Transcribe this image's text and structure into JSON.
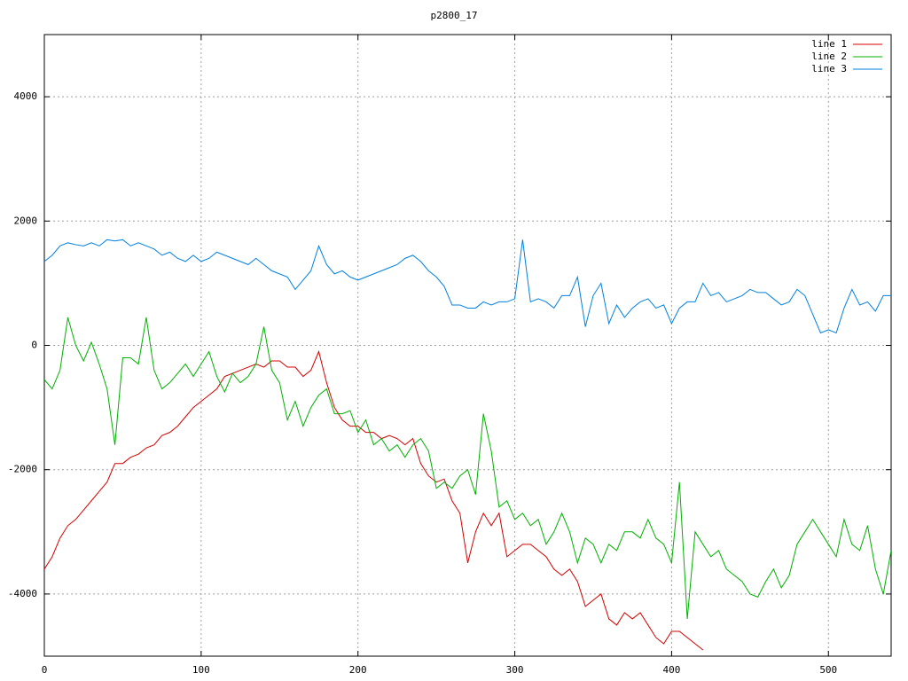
{
  "chart_data": {
    "type": "line",
    "title": "p2800_17",
    "x": [
      0,
      5,
      10,
      15,
      20,
      25,
      30,
      35,
      40,
      45,
      50,
      55,
      60,
      65,
      70,
      75,
      80,
      85,
      90,
      95,
      100,
      105,
      110,
      115,
      120,
      125,
      130,
      135,
      140,
      145,
      150,
      155,
      160,
      165,
      170,
      175,
      180,
      185,
      190,
      195,
      200,
      205,
      210,
      215,
      220,
      225,
      230,
      235,
      240,
      245,
      250,
      255,
      260,
      265,
      270,
      275,
      280,
      285,
      290,
      295,
      300,
      305,
      310,
      315,
      320,
      325,
      330,
      335,
      340,
      345,
      350,
      355,
      360,
      365,
      370,
      375,
      380,
      385,
      390,
      395,
      400,
      405,
      410,
      415,
      420,
      425,
      430,
      435,
      440,
      445,
      450,
      455,
      460,
      465,
      470,
      475,
      480,
      485,
      490,
      495,
      500,
      505,
      510,
      515,
      520,
      525,
      530,
      535,
      540
    ],
    "series": [
      {
        "name": "line 1",
        "color": "#d40000",
        "values": [
          -3600,
          -3400,
          -3100,
          -2900,
          -2800,
          -2650,
          -2500,
          -2350,
          -2200,
          -1900,
          -1900,
          -1800,
          -1750,
          -1650,
          -1600,
          -1450,
          -1400,
          -1300,
          -1150,
          -1000,
          -900,
          -800,
          -700,
          -500,
          -450,
          -400,
          -350,
          -300,
          -350,
          -250,
          -250,
          -350,
          -350,
          -500,
          -400,
          -100,
          -600,
          -1000,
          -1200,
          -1300,
          -1300,
          -1400,
          -1400,
          -1500,
          -1450,
          -1500,
          -1600,
          -1500,
          -1900,
          -2100,
          -2200,
          -2150,
          -2500,
          -2700,
          -3500,
          -3000,
          -2700,
          -2900,
          -2700,
          -3400,
          -3300,
          -3200,
          -3200,
          -3300,
          -3400,
          -3600,
          -3700,
          -3600,
          -3800,
          -4200,
          -4100,
          -4000,
          -4400,
          -4500,
          -4300,
          -4400,
          -4300,
          -4500,
          -4700,
          -4800,
          -4600,
          -4600,
          -4700,
          -4800,
          -4900,
          null,
          null,
          null,
          null,
          null,
          null,
          null,
          null,
          null,
          null,
          null,
          null,
          null,
          null,
          null,
          null,
          null,
          null,
          null,
          null,
          null,
          null,
          null,
          null
        ]
      },
      {
        "name": "line 2",
        "color": "#00b000",
        "values": [
          -550,
          -700,
          -400,
          450,
          0,
          -250,
          50,
          -300,
          -700,
          -1600,
          -200,
          -200,
          -300,
          450,
          -400,
          -700,
          -600,
          -450,
          -300,
          -500,
          -300,
          -100,
          -500,
          -750,
          -450,
          -600,
          -500,
          -300,
          300,
          -400,
          -600,
          -1200,
          -900,
          -1300,
          -1000,
          -800,
          -700,
          -1100,
          -1100,
          -1050,
          -1400,
          -1200,
          -1600,
          -1500,
          -1700,
          -1600,
          -1800,
          -1600,
          -1500,
          -1700,
          -2300,
          -2200,
          -2300,
          -2100,
          -2000,
          -2400,
          -1100,
          -1700,
          -2600,
          -2500,
          -2800,
          -2700,
          -2900,
          -2800,
          -3200,
          -3000,
          -2700,
          -3000,
          -3500,
          -3100,
          -3200,
          -3500,
          -3200,
          -3300,
          -3000,
          -3000,
          -3100,
          -2800,
          -3100,
          -3200,
          -3500,
          -2200,
          -4400,
          -3000,
          -3200,
          -3400,
          -3300,
          -3600,
          -3700,
          -3800,
          -4000,
          -4050,
          -3800,
          -3600,
          -3900,
          -3700,
          -3200,
          -3000,
          -2800,
          -3000,
          -3200,
          -3400,
          -2800,
          -3200,
          -3300,
          -2900,
          -3600,
          -4000,
          -3300
        ]
      },
      {
        "name": "line 3",
        "color": "#0080e0",
        "values": [
          1350,
          1450,
          1600,
          1650,
          1620,
          1600,
          1650,
          1600,
          1700,
          1680,
          1700,
          1600,
          1650,
          1600,
          1550,
          1450,
          1500,
          1400,
          1350,
          1450,
          1350,
          1400,
          1500,
          1450,
          1400,
          1350,
          1300,
          1400,
          1300,
          1200,
          1150,
          1100,
          900,
          1050,
          1200,
          1600,
          1300,
          1150,
          1200,
          1100,
          1050,
          1100,
          1150,
          1200,
          1250,
          1300,
          1400,
          1450,
          1350,
          1200,
          1100,
          950,
          650,
          650,
          600,
          600,
          700,
          650,
          700,
          700,
          750,
          1700,
          700,
          750,
          700,
          600,
          800,
          800,
          1100,
          300,
          800,
          1000,
          350,
          650,
          450,
          600,
          700,
          750,
          600,
          650,
          350,
          600,
          700,
          700,
          1000,
          800,
          850,
          700,
          750,
          800,
          900,
          850,
          850,
          750,
          650,
          700,
          900,
          800,
          500,
          200,
          250,
          200,
          600,
          900,
          650,
          700,
          550,
          800,
          800
        ]
      }
    ],
    "xlim": [
      0,
      540
    ],
    "xticks": [
      0,
      100,
      200,
      300,
      400,
      500
    ],
    "ylim": [
      -5000,
      5000
    ],
    "yticks": [
      -4000,
      -2000,
      0,
      2000,
      4000
    ],
    "grid": true,
    "legend": "top-right"
  }
}
